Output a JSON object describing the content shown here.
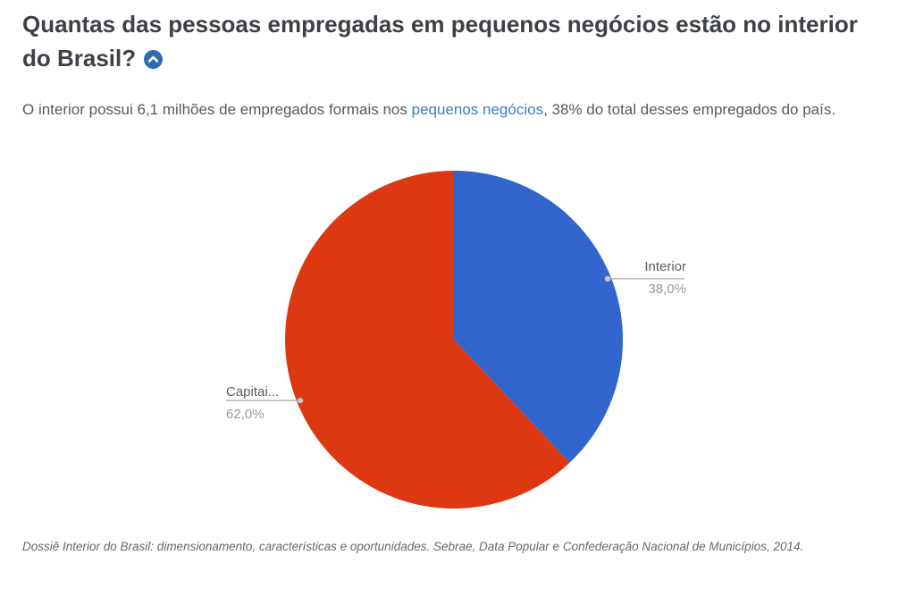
{
  "header": {
    "title": "Quantas das pessoas empregadas em pequenos negócios estão no interior do Brasil?",
    "anchor_icon": "chevron-up-circle"
  },
  "intro": {
    "text_before_link": "O interior possui 6,1 milhões de empregados formais nos ",
    "link_text": "pequenos negócios",
    "text_after_link": ", 38% do total desses empregados do país."
  },
  "chart_data": {
    "type": "pie",
    "title": "",
    "categories": [
      "Interior",
      "Capitai..."
    ],
    "values": [
      38.0,
      62.0
    ],
    "value_labels": [
      "38,0%",
      "62,0%"
    ],
    "colors": [
      "#3366cc",
      "#dc3912"
    ],
    "start_angle_deg": 0,
    "direction": "clockwise",
    "labels_style": "outside-leader-lines",
    "legend_position": "none"
  },
  "source_note": "Dossiê Interior do Brasil: dimensionamento, características e oportunidades. Sebrae, Data Popular e Confederação Nacional de Municípios, 2014.",
  "colors": {
    "title_text": "#3d4045",
    "body_text": "#58595c",
    "link": "#3d7cbd",
    "anchor_icon_bg": "#2b6cb3",
    "leader_line": "#a6a6a6",
    "leader_dot": "#c9c9c9"
  }
}
